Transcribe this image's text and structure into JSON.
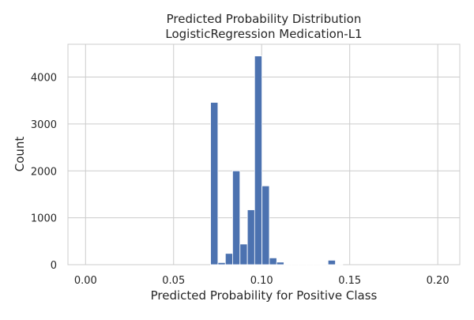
{
  "chart_data": {
    "type": "bar",
    "title": "Predicted Probability Distribution",
    "subtitle": "LogisticRegression Medication-L1",
    "xlabel": "Predicted Probability for Positive Class",
    "ylabel": "Count",
    "xlim": [
      -0.01,
      0.2125
    ],
    "ylim": [
      0,
      4700
    ],
    "grid": true,
    "bar_color": "#4c72b0",
    "xticks": [
      {
        "value": 0.0,
        "label": "0.00"
      },
      {
        "value": 0.05,
        "label": "0.05"
      },
      {
        "value": 0.1,
        "label": "0.10"
      },
      {
        "value": 0.15,
        "label": "0.15"
      },
      {
        "value": 0.2,
        "label": "0.20"
      }
    ],
    "yticks": [
      {
        "value": 0,
        "label": "0"
      },
      {
        "value": 1000,
        "label": "1000"
      },
      {
        "value": 2000,
        "label": "2000"
      },
      {
        "value": 3000,
        "label": "3000"
      },
      {
        "value": 4000,
        "label": "4000"
      }
    ],
    "bin_width": 0.00417,
    "bins": [
      {
        "x": 0.071,
        "count": 3460
      },
      {
        "x": 0.0752,
        "count": 45
      },
      {
        "x": 0.0794,
        "count": 240
      },
      {
        "x": 0.0835,
        "count": 2000
      },
      {
        "x": 0.0877,
        "count": 440
      },
      {
        "x": 0.0919,
        "count": 1170
      },
      {
        "x": 0.096,
        "count": 4450
      },
      {
        "x": 0.1002,
        "count": 1680
      },
      {
        "x": 0.1044,
        "count": 145
      },
      {
        "x": 0.1085,
        "count": 55
      },
      {
        "x": 0.1127,
        "count": 10
      },
      {
        "x": 0.1169,
        "count": 5
      },
      {
        "x": 0.121,
        "count": 5
      },
      {
        "x": 0.1252,
        "count": 5
      },
      {
        "x": 0.1294,
        "count": 5
      },
      {
        "x": 0.1335,
        "count": 5
      },
      {
        "x": 0.1377,
        "count": 95
      },
      {
        "x": 0.1419,
        "count": 5
      }
    ]
  }
}
